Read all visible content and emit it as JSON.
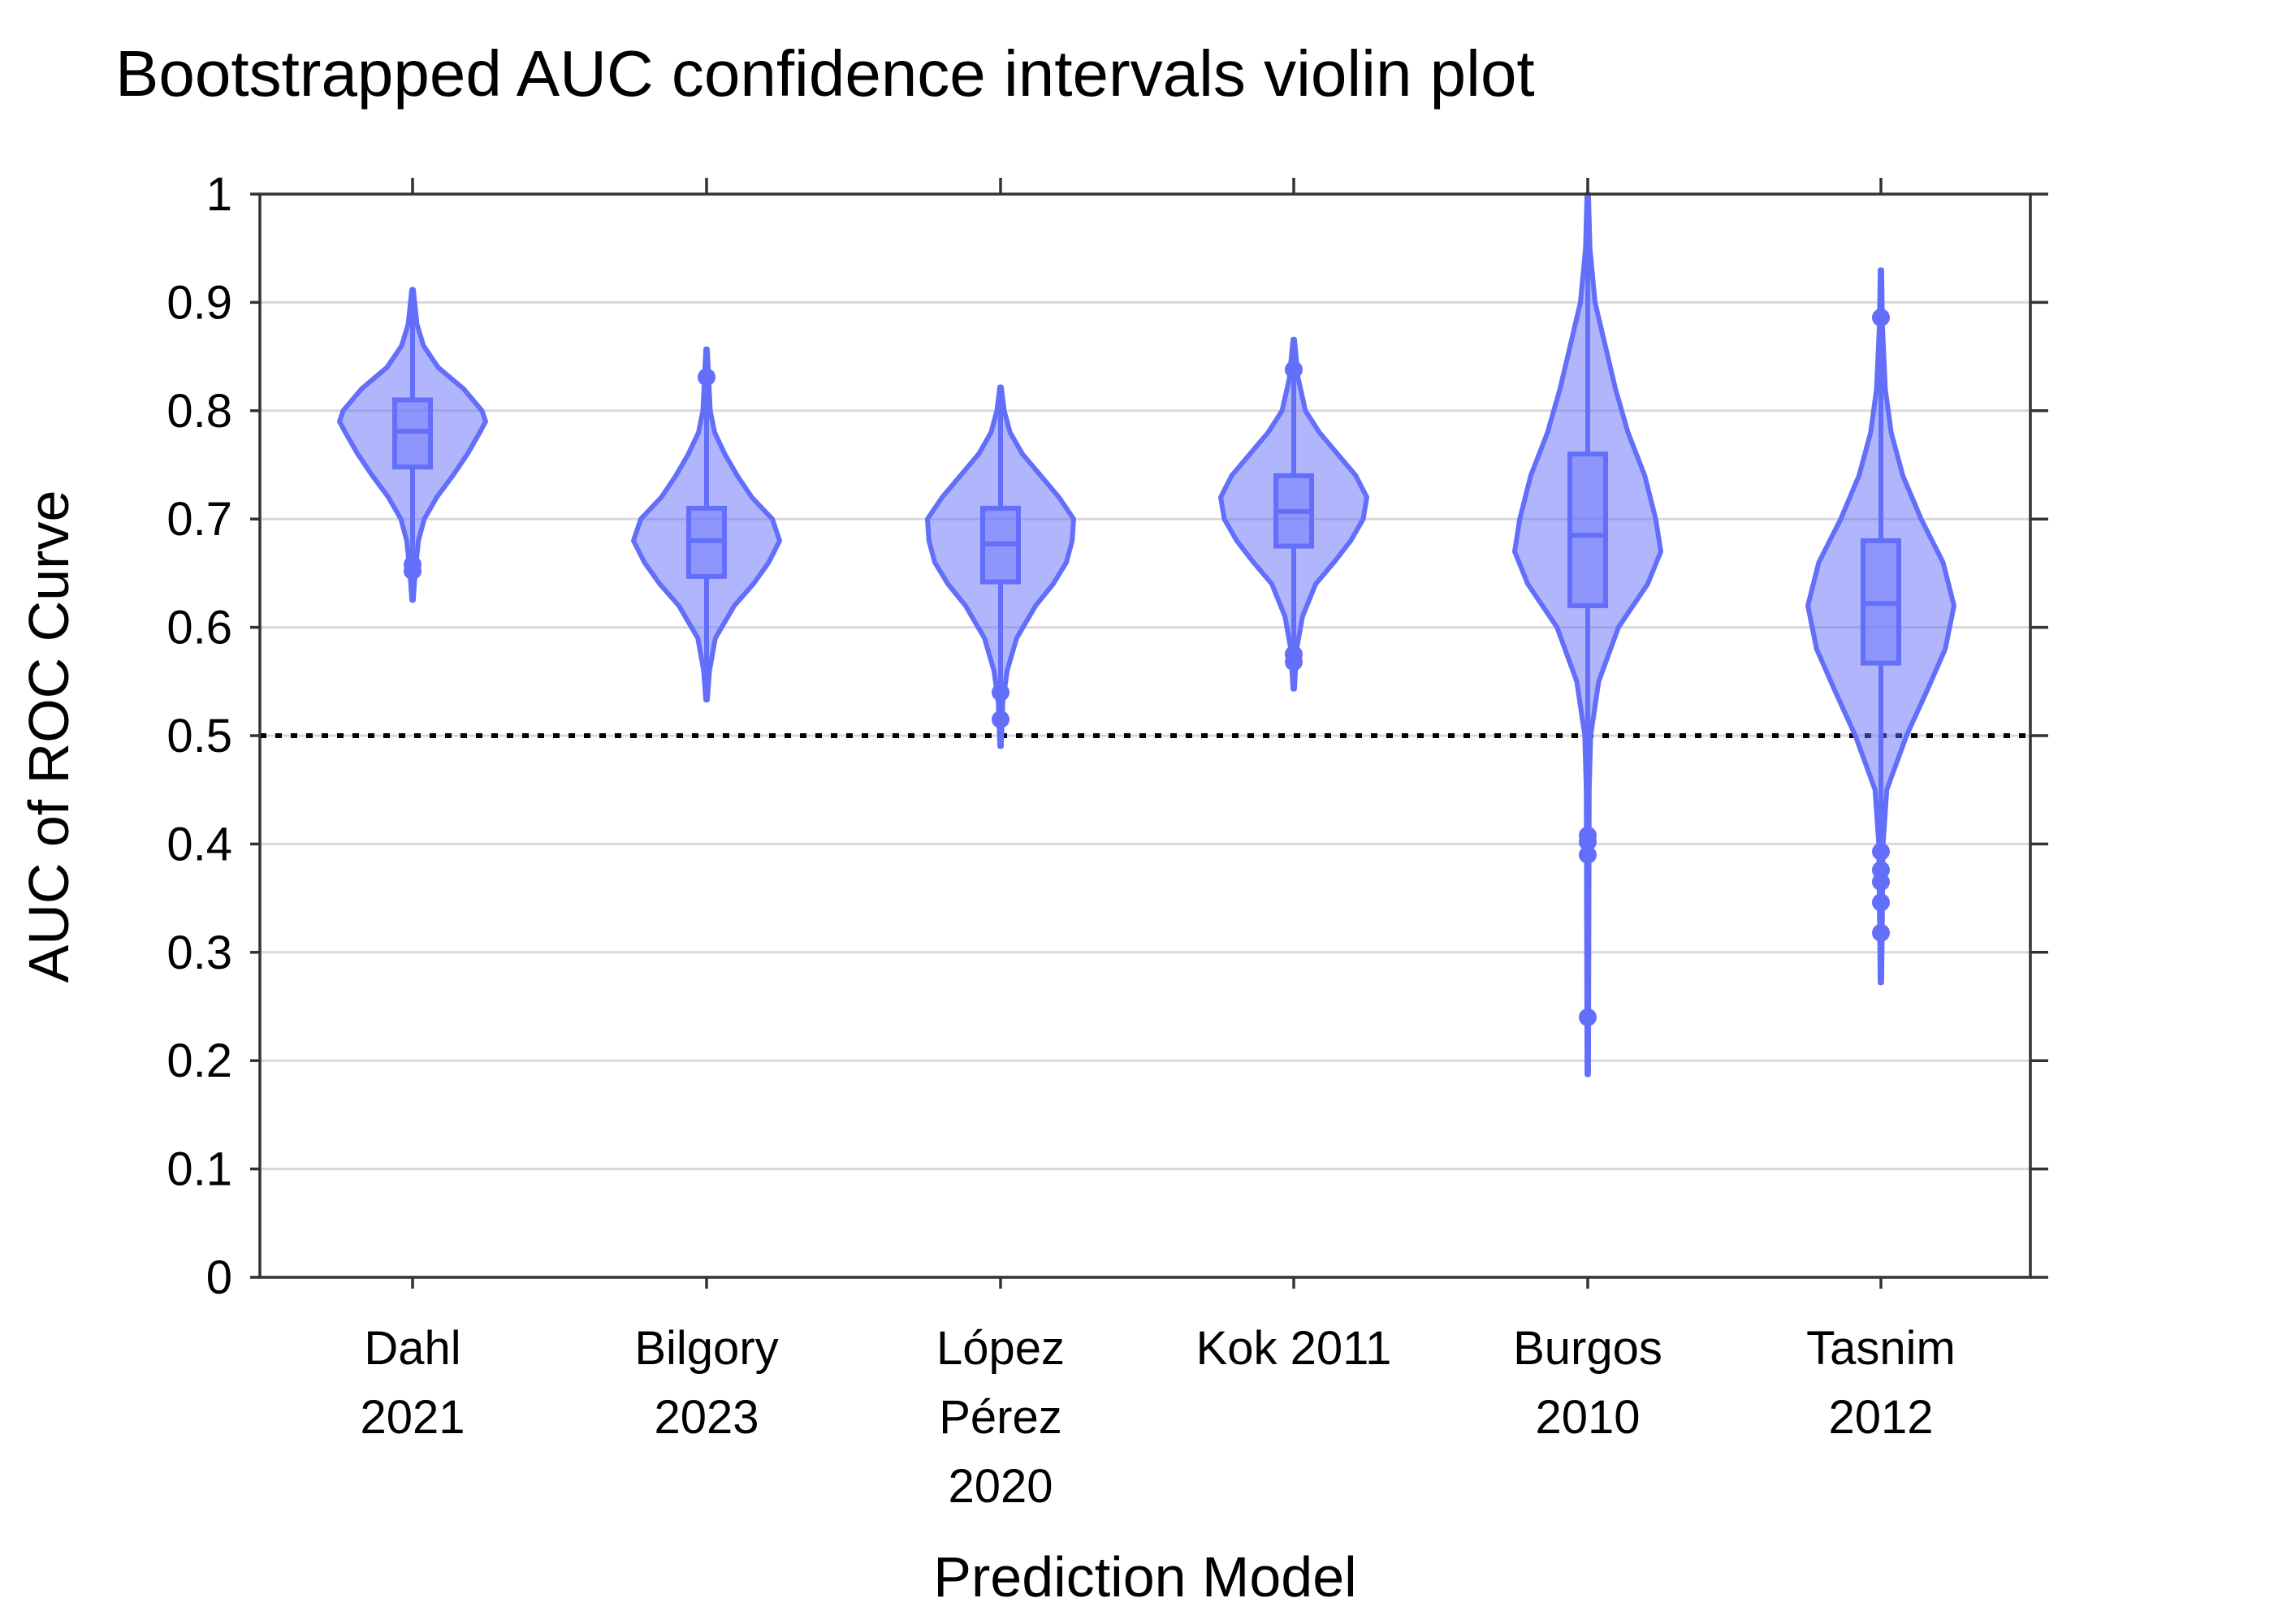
{
  "chart_data": {
    "type": "violin",
    "title": "Bootstrapped AUC confidence intervals violin plot",
    "xlabel": "Prediction Model",
    "ylabel": "AUC of ROC Curve",
    "ylim": [
      0,
      1
    ],
    "yticks": [
      "0",
      "0.1",
      "0.2",
      "0.3",
      "0.4",
      "0.5",
      "0.6",
      "0.7",
      "0.8",
      "0.9",
      "1"
    ],
    "grid": true,
    "reference_line": {
      "y": 0.5,
      "style": "dotted",
      "color": "#000000"
    },
    "color": "#636efa",
    "fill_color": "#636efa",
    "categories": [
      {
        "label_lines": [
          "Dahl",
          "2021"
        ],
        "min": 0.625,
        "max": 0.912,
        "q1": 0.748,
        "median": 0.781,
        "q3": 0.81,
        "outliers": [
          0.658,
          0.652
        ],
        "density": [
          [
            0.625,
            0.01
          ],
          [
            0.65,
            0.035
          ],
          [
            0.68,
            0.08
          ],
          [
            0.7,
            0.16
          ],
          [
            0.72,
            0.33
          ],
          [
            0.74,
            0.55
          ],
          [
            0.76,
            0.75
          ],
          [
            0.78,
            0.92
          ],
          [
            0.79,
            1.0
          ],
          [
            0.8,
            0.95
          ],
          [
            0.82,
            0.7
          ],
          [
            0.84,
            0.35
          ],
          [
            0.86,
            0.15
          ],
          [
            0.88,
            0.06
          ],
          [
            0.912,
            0.01
          ]
        ]
      },
      {
        "label_lines": [
          "Bilgory",
          "2023"
        ],
        "min": 0.533,
        "max": 0.857,
        "q1": 0.647,
        "median": 0.68,
        "q3": 0.71,
        "outliers": [
          0.831
        ],
        "density": [
          [
            0.533,
            0.01
          ],
          [
            0.56,
            0.04
          ],
          [
            0.59,
            0.12
          ],
          [
            0.62,
            0.38
          ],
          [
            0.64,
            0.64
          ],
          [
            0.66,
            0.85
          ],
          [
            0.68,
            1.0
          ],
          [
            0.7,
            0.9
          ],
          [
            0.72,
            0.62
          ],
          [
            0.74,
            0.42
          ],
          [
            0.76,
            0.25
          ],
          [
            0.78,
            0.11
          ],
          [
            0.8,
            0.05
          ],
          [
            0.857,
            0.01
          ]
        ]
      },
      {
        "label_lines": [
          "López",
          "Pérez",
          "2020"
        ],
        "min": 0.49,
        "max": 0.822,
        "q1": 0.642,
        "median": 0.677,
        "q3": 0.71,
        "outliers": [
          0.54,
          0.515
        ],
        "density": [
          [
            0.49,
            0.01
          ],
          [
            0.53,
            0.03
          ],
          [
            0.56,
            0.09
          ],
          [
            0.59,
            0.22
          ],
          [
            0.62,
            0.48
          ],
          [
            0.64,
            0.72
          ],
          [
            0.66,
            0.9
          ],
          [
            0.68,
            0.98
          ],
          [
            0.7,
            1.0
          ],
          [
            0.72,
            0.8
          ],
          [
            0.74,
            0.55
          ],
          [
            0.76,
            0.3
          ],
          [
            0.78,
            0.13
          ],
          [
            0.8,
            0.05
          ],
          [
            0.822,
            0.01
          ]
        ]
      },
      {
        "label_lines": [
          "Kok 2011"
        ],
        "min": 0.543,
        "max": 0.866,
        "q1": 0.675,
        "median": 0.707,
        "q3": 0.74,
        "outliers": [
          0.838,
          0.575,
          0.568
        ],
        "density": [
          [
            0.543,
            0.01
          ],
          [
            0.58,
            0.04
          ],
          [
            0.61,
            0.12
          ],
          [
            0.64,
            0.3
          ],
          [
            0.66,
            0.55
          ],
          [
            0.68,
            0.78
          ],
          [
            0.7,
            0.95
          ],
          [
            0.72,
            1.0
          ],
          [
            0.74,
            0.85
          ],
          [
            0.76,
            0.6
          ],
          [
            0.78,
            0.35
          ],
          [
            0.8,
            0.16
          ],
          [
            0.83,
            0.06
          ],
          [
            0.866,
            0.01
          ]
        ]
      },
      {
        "label_lines": [
          "Burgos",
          "2010"
        ],
        "min": 0.187,
        "max": 1.0,
        "q1": 0.62,
        "median": 0.685,
        "q3": 0.76,
        "outliers": [
          0.408,
          0.402,
          0.39,
          0.24
        ],
        "density": [
          [
            0.187,
            0.01
          ],
          [
            0.45,
            0.02
          ],
          [
            0.5,
            0.04
          ],
          [
            0.55,
            0.15
          ],
          [
            0.6,
            0.42
          ],
          [
            0.64,
            0.82
          ],
          [
            0.67,
            1.0
          ],
          [
            0.7,
            0.93
          ],
          [
            0.74,
            0.78
          ],
          [
            0.78,
            0.55
          ],
          [
            0.82,
            0.38
          ],
          [
            0.86,
            0.24
          ],
          [
            0.9,
            0.1
          ],
          [
            0.95,
            0.03
          ],
          [
            1.0,
            0.01
          ]
        ]
      },
      {
        "label_lines": [
          "Tasnim",
          "2012"
        ],
        "min": 0.272,
        "max": 0.93,
        "q1": 0.567,
        "median": 0.622,
        "q3": 0.68,
        "outliers": [
          0.886,
          0.393,
          0.376,
          0.365,
          0.346,
          0.318
        ],
        "density": [
          [
            0.272,
            0.01
          ],
          [
            0.4,
            0.03
          ],
          [
            0.45,
            0.08
          ],
          [
            0.5,
            0.35
          ],
          [
            0.54,
            0.62
          ],
          [
            0.58,
            0.88
          ],
          [
            0.62,
            1.0
          ],
          [
            0.66,
            0.85
          ],
          [
            0.7,
            0.55
          ],
          [
            0.74,
            0.3
          ],
          [
            0.78,
            0.14
          ],
          [
            0.82,
            0.06
          ],
          [
            0.88,
            0.02
          ],
          [
            0.93,
            0.01
          ]
        ]
      }
    ]
  }
}
